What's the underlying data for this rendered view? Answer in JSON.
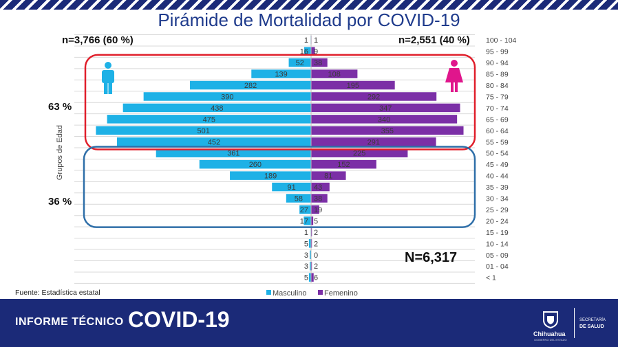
{
  "header": {
    "title": "Pirámide de Mortalidad por COVID-19"
  },
  "chart_data": {
    "type": "bar",
    "orientation": "horizontal-pyramid",
    "categories": [
      "100 - 104",
      "95 - 99",
      "90 - 94",
      "85 - 89",
      "80 - 84",
      "75 - 79",
      "70 - 74",
      "65 - 69",
      "60 - 64",
      "55 - 59",
      "50 - 54",
      "45 - 49",
      "40 - 44",
      "35 - 39",
      "30 - 34",
      "25 - 29",
      "20 - 24",
      "15 - 19",
      "10 - 14",
      "05 - 09",
      "01 - 04",
      "< 1"
    ],
    "series": [
      {
        "name": "Masculino",
        "color": "#1eb1e6",
        "values": [
          1,
          16,
          52,
          139,
          282,
          390,
          438,
          475,
          501,
          452,
          361,
          260,
          189,
          91,
          58,
          27,
          17,
          1,
          5,
          3,
          3,
          5
        ]
      },
      {
        "name": "Femenino",
        "color": "#7b2fa6",
        "values": [
          1,
          9,
          38,
          108,
          195,
          292,
          347,
          340,
          355,
          291,
          225,
          152,
          81,
          43,
          38,
          19,
          5,
          2,
          2,
          0,
          2,
          6
        ]
      }
    ],
    "ylabel": "Grupos de Edad",
    "xlim": [
      -520,
      400
    ],
    "grid": "horizontal",
    "legend_position": "bottom",
    "annotations": {
      "male_total": "n=3,766 (60 %)",
      "female_total": "n=2,551 (40 %)",
      "grand_total": "N=6,317",
      "upper_group_pct": "63 %",
      "lower_group_pct": "36 %",
      "upper_box_color": "#e01e2a",
      "lower_box_color": "#2e6ea8"
    }
  },
  "source": "Fuente: Estadística estatal",
  "icons": {
    "male": "male-figure-icon",
    "female": "female-figure-icon"
  },
  "footer": {
    "label": "INFORME TÉCNICO",
    "title": "COVID-19",
    "brand_name": "Chihuahua",
    "brand_sub": "GOBIERNO DEL ESTADO",
    "secretaria_label": "SECRETARÍA",
    "secretaria_name": "DE SALUD"
  },
  "colors": {
    "footer_bg": "#1b2a78",
    "title": "#1f3b8c",
    "male": "#1eb1e6",
    "female": "#7b2fa6"
  }
}
